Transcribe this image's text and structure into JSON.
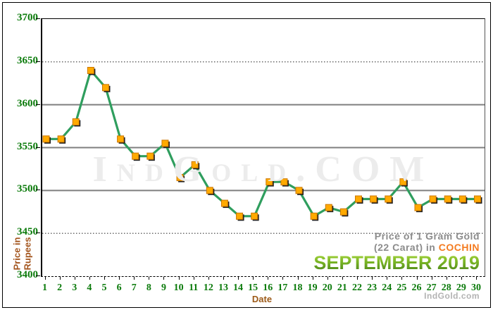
{
  "chart_data": {
    "type": "line",
    "title": "Price of 1 Gram Gold (22 Carat) in COCHIN - SEPTEMBER 2019",
    "categories": [
      1,
      2,
      3,
      4,
      5,
      6,
      7,
      8,
      9,
      10,
      11,
      12,
      13,
      14,
      15,
      16,
      17,
      18,
      19,
      20,
      21,
      22,
      23,
      24,
      25,
      26,
      27,
      28,
      29,
      30
    ],
    "series": [
      {
        "name": "Gold price per gram (22 carat), Rupees",
        "values": [
          3560,
          3560,
          3580,
          3640,
          3620,
          3560,
          3540,
          3540,
          3555,
          3515,
          3530,
          3500,
          3485,
          3470,
          3470,
          3510,
          3510,
          3500,
          3470,
          3480,
          3475,
          3490,
          3490,
          3490,
          3510,
          3480,
          3490,
          3490,
          3490,
          3490
        ]
      }
    ],
    "xlabel": "Date",
    "ylabel": "Price in Rupees",
    "ylim": [
      3400,
      3700
    ],
    "yticks": [
      3400,
      3450,
      3500,
      3550,
      3600,
      3650,
      3700
    ],
    "grid_dotted": [
      3450,
      3650
    ],
    "grid_solid": [
      3500,
      3550,
      3600
    ],
    "legend_position": "none",
    "line_color": "#2f9e5e",
    "marker_color": "#ffaa00",
    "marker_border_color": "#cc7700",
    "marker_shadow_color": "#1f1f1f"
  },
  "axis": {
    "ylabel_line1": "Price in",
    "ylabel_line2": "Rupees",
    "xlabel": "Date"
  },
  "watermark": "IndGold.COM",
  "branding": {
    "line1": "Price of 1 Gram Gold",
    "line2_prefix": "(22 Carat) in ",
    "city": "COCHIN",
    "period": "SEPTEMBER 2019",
    "footer": "IndGold.com"
  },
  "colors": {
    "axis_label_green": "#0a7a0a",
    "axis_title_brown": "#a3551e",
    "branding_gray": "#8c8c8c",
    "city_orange": "#f47b20",
    "period_green": "#5a9e1f",
    "gridline_gray": "#7f7f7f",
    "watermark_gray": "#ececec",
    "footer_gray": "#b3b3b3"
  }
}
